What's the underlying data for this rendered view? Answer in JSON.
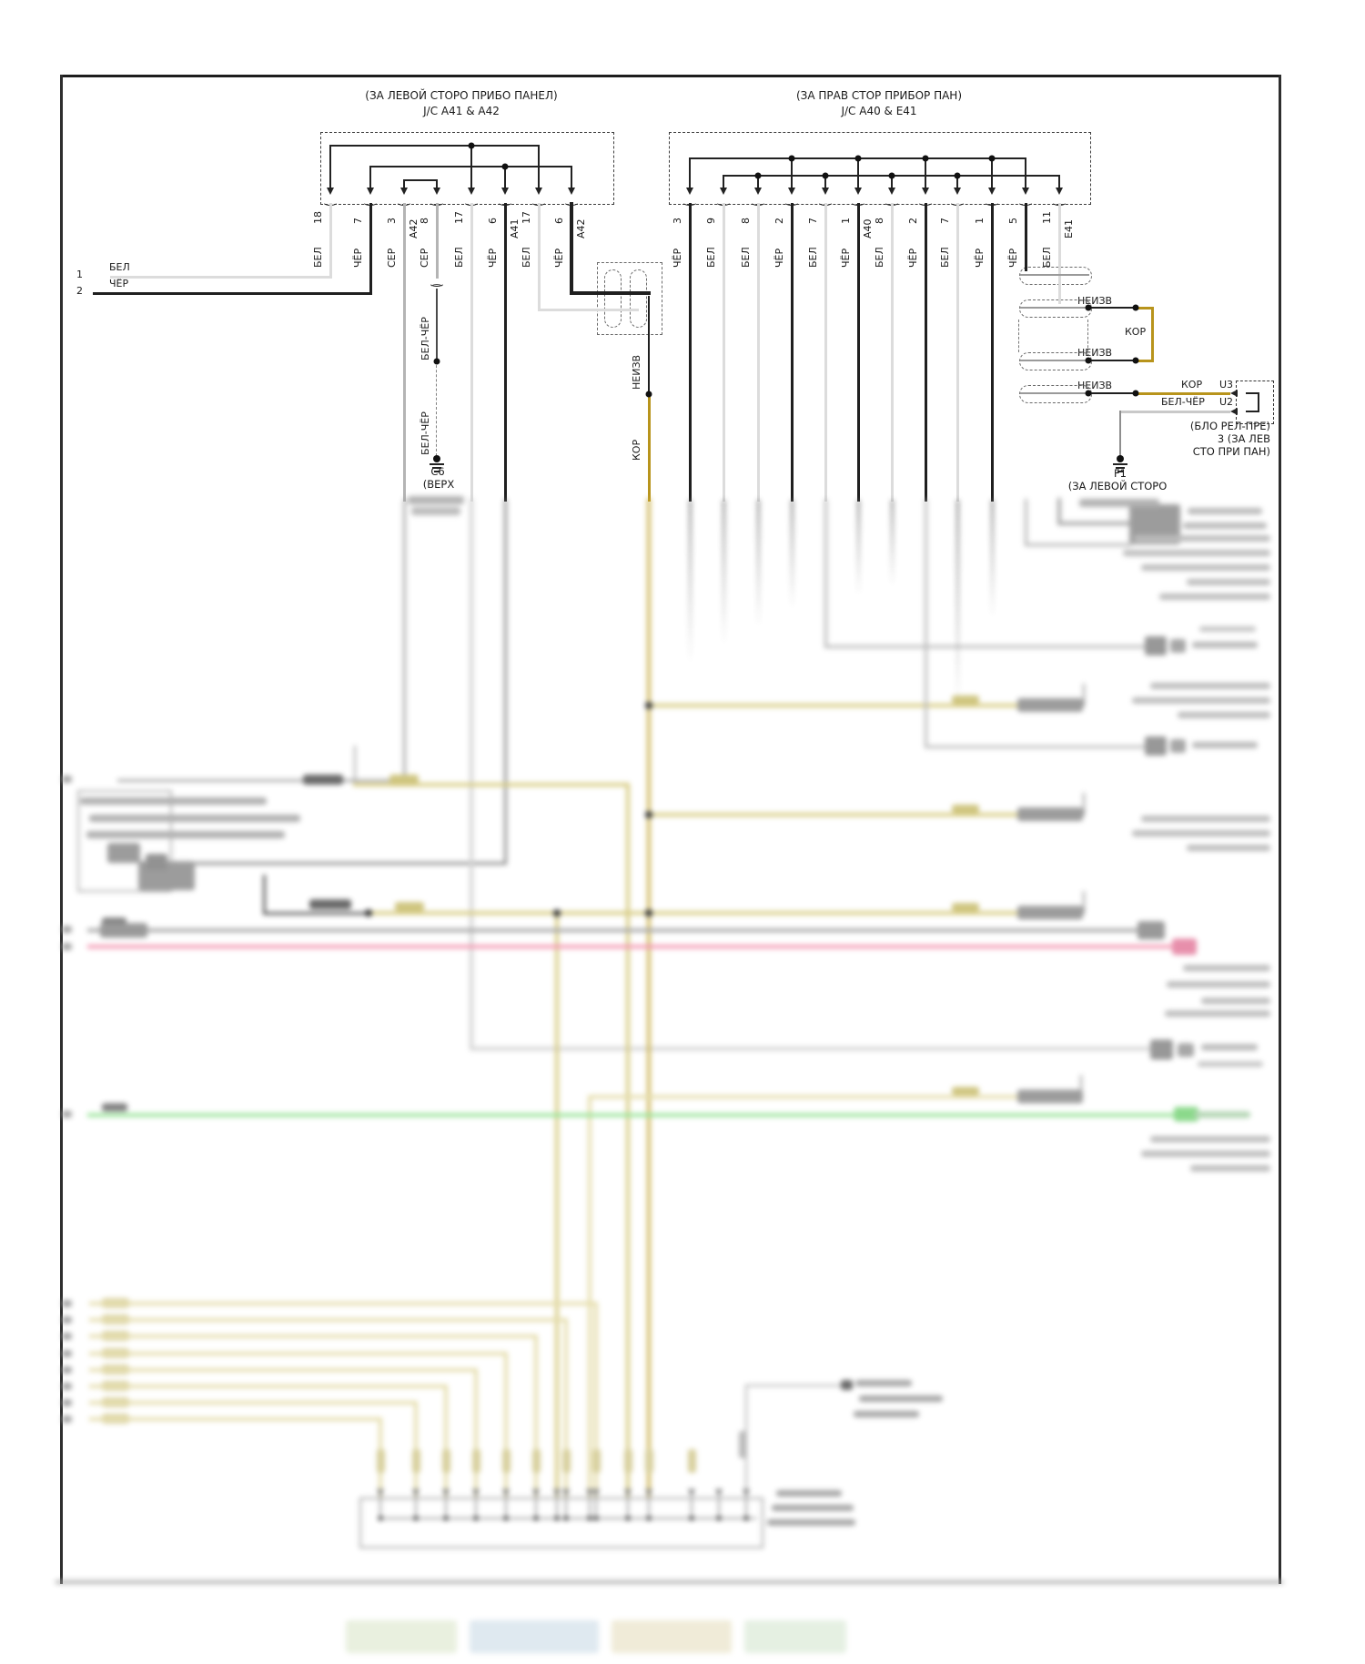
{
  "diagram": {
    "kind": "automotive wiring diagram section",
    "left_jc": {
      "title1": "(ЗА ЛЕВОЙ СТОРО ПРИБО ПАНЕЛ)",
      "title2": "J/C A41 & A42",
      "pins": [
        {
          "num": "18",
          "color": "БЕЛ"
        },
        {
          "num": "7",
          "color": "ЧЁР"
        },
        {
          "num": "3",
          "tag": "A42",
          "color": "СЕР"
        },
        {
          "num": "8",
          "color": "СЕР"
        },
        {
          "num": "17",
          "color": "БЕЛ"
        },
        {
          "num": "6",
          "tag": "A41",
          "color": "ЧЁР"
        },
        {
          "num": "17",
          "color": "БЕЛ"
        },
        {
          "num": "6",
          "tag": "A42",
          "color": "ЧЁР"
        }
      ]
    },
    "right_jc": {
      "title1": "(ЗА ПРАВ СТОР ПРИБОР ПАН)",
      "title2": "J/C A40 & E41",
      "pins": [
        {
          "num": "3",
          "color": "ЧЁР"
        },
        {
          "num": "9",
          "color": "БЕЛ"
        },
        {
          "num": "8",
          "color": "БЕЛ"
        },
        {
          "num": "2",
          "color": "ЧЁР"
        },
        {
          "num": "7",
          "color": "БЕЛ"
        },
        {
          "num": "1",
          "tag": "A40",
          "color": "ЧЁР"
        },
        {
          "num": "8",
          "color": "БЕЛ"
        },
        {
          "num": "2",
          "color": "ЧЁР"
        },
        {
          "num": "7",
          "color": "БЕЛ"
        },
        {
          "num": "1",
          "color": "ЧЁР"
        },
        {
          "num": "5",
          "color": "ЧЁР"
        },
        {
          "num": "11",
          "tag": "E41",
          "color": "БЕЛ"
        }
      ]
    },
    "external": {
      "pins": [
        {
          "num": "1",
          "color": "БЕЛ"
        },
        {
          "num": "2",
          "color": "ЧЁР"
        }
      ]
    },
    "branch": {
      "neizv": "НЕИЗВ",
      "kor": "КОР"
    },
    "c6": {
      "wire1": "БЕЛ-ЧЁР",
      "wire2": "БЕЛ-ЧЁР",
      "name": "С6",
      "loc": "(ВЕРХ"
    },
    "right_taps": {
      "neizv": "НЕИЗВ",
      "kor": "КОР",
      "u3_wire": "КОР",
      "u3_pin": "U3",
      "u2_wire": "БЕЛ-ЧЁР",
      "u2_pin": "U2",
      "relay": [
        "(БЛО РЕЛ-ПРЕ)",
        "3 (ЗА ЛЕВ",
        "СТО ПРИ ПАН)"
      ]
    },
    "f1": {
      "name": "F1",
      "loc": "(ЗА ЛЕВОЙ СТОРО"
    },
    "colors": {
      "wire_white": "#dcdcdc",
      "wire_black": "#1f1f1f",
      "wire_gray": "#b4b4b4",
      "wire_brown": "#b8941c",
      "wire_brown_pale": "#c9ae46",
      "wire_olive_pale": "#d2c573",
      "wire_tan": "#e2d9a2",
      "wire_red": "#f28ba8",
      "wire_green": "#8be08b"
    }
  }
}
